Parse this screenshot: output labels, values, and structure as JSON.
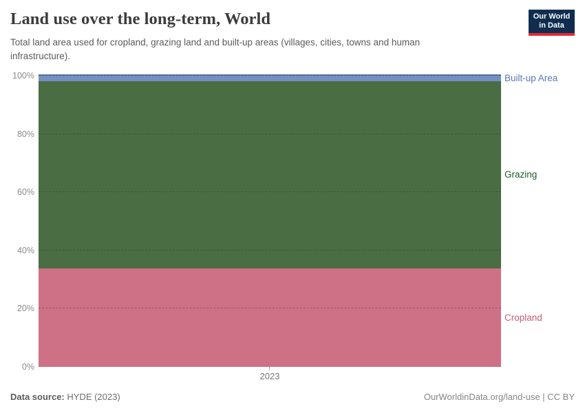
{
  "header": {
    "title": "Land use over the long-term, World",
    "subtitle": "Total land area used for cropland, grazing land and built-up areas (villages, cities, towns and human infrastructure).",
    "logo": {
      "line1": "Our World",
      "line2": "in Data",
      "bg_color": "#102d50",
      "accent_color": "#e02b35"
    }
  },
  "chart_data": {
    "type": "area",
    "stacked": true,
    "normalized": "percent of total",
    "title": "Land use over the long-term, World",
    "xlabel": "",
    "ylabel": "",
    "ylim": [
      0,
      100
    ],
    "grid": "horizontal dashed",
    "legend_position": "right outside, inline series labels",
    "x": [
      2023
    ],
    "x_tick_labels": [
      "2023"
    ],
    "y_ticks": [
      0,
      20,
      40,
      60,
      80,
      100
    ],
    "y_tick_labels": [
      "0%",
      "20%",
      "40%",
      "60%",
      "80%",
      "100%"
    ],
    "series": [
      {
        "name": "Cropland",
        "values": [
          33.7
        ],
        "color": "#ce7186",
        "label_color": "#c25f78"
      },
      {
        "name": "Grazing",
        "values": [
          64.4
        ],
        "color": "#4b6d43",
        "label_color": "#1e5a25"
      },
      {
        "name": "Built-up Area",
        "values": [
          1.9
        ],
        "color": "#7490c1",
        "label_color": "#5878b0",
        "edge_color": "#5d7aae"
      }
    ]
  },
  "footer": {
    "source_label": "Data source:",
    "source_value": "HYDE (2023)",
    "license": "OurWorldinData.org/land-use | CC BY"
  }
}
